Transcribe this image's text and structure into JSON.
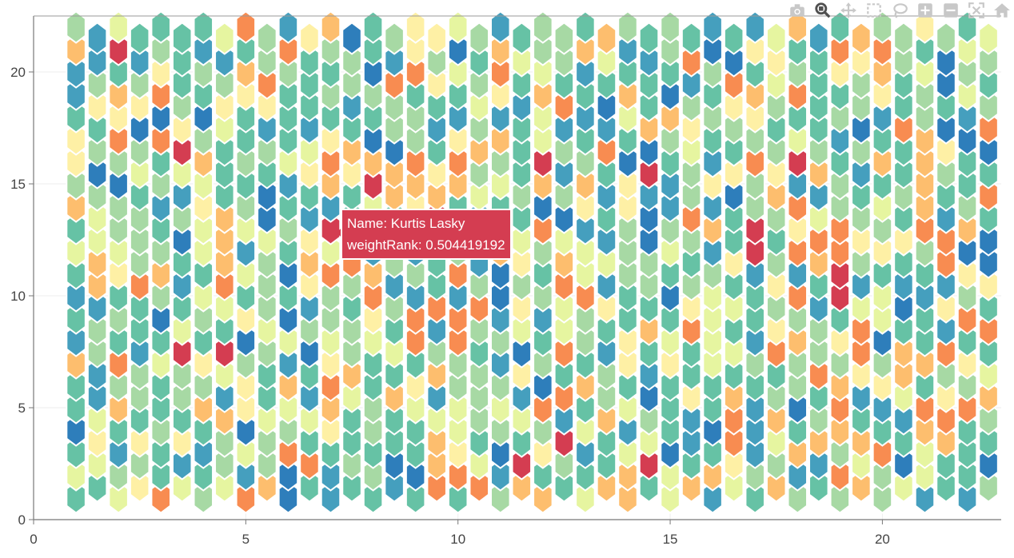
{
  "toolbar": {
    "icons": [
      "camera-icon",
      "zoom-icon",
      "pan-icon",
      "box-select-icon",
      "lasso-select-icon",
      "zoom-in-icon",
      "zoom-out-icon",
      "autoscale-icon",
      "reset-axes-icon"
    ]
  },
  "tooltip": {
    "name_line": "Name: Kurtis Lasky",
    "value_line": "weightRank: 0.504419192",
    "color": "#d43d51"
  },
  "chart_data": {
    "type": "heatmap",
    "subtype": "hexbin",
    "title": "",
    "xlabel": "",
    "ylabel": "",
    "xlim": [
      0,
      22.8
    ],
    "ylim": [
      0,
      22.5
    ],
    "x_ticks": [
      "0",
      "5",
      "10",
      "15",
      "20"
    ],
    "y_ticks": [
      "0",
      "5",
      "10",
      "15",
      "20"
    ],
    "x_tick_values": [
      0,
      5,
      10,
      15,
      20
    ],
    "y_tick_values": [
      0,
      5,
      10,
      15,
      20
    ],
    "grid": true,
    "colorscale": [
      "#d43d51",
      "#f88c51",
      "#fdbe6e",
      "#fef0a5",
      "#e6f5a0",
      "#a7d9a4",
      "#66c2a5",
      "#459fbe",
      "#2e7ebb"
    ],
    "hex_x_values": [
      1,
      1.5,
      2,
      2.5,
      3,
      3.5,
      4,
      4.5,
      5,
      5.5,
      6,
      6.5,
      7,
      7.5,
      8,
      8.5,
      9,
      9.5,
      10,
      10.5,
      11,
      11.5,
      12,
      12.5,
      13,
      13.5,
      14,
      14.5,
      15,
      15.5,
      16,
      16.5,
      17,
      17.5,
      18,
      18.5,
      19,
      19.5,
      20,
      20.5,
      21,
      21.5,
      22,
      22.5
    ],
    "hex_y_values": [
      1,
      2,
      3,
      4,
      5,
      6,
      7,
      8,
      9,
      10,
      11,
      12,
      13,
      14,
      15,
      16,
      17,
      18,
      19,
      20,
      21,
      22
    ],
    "highlighted_point": {
      "x": 7,
      "y": 13,
      "weightRank": 0.504419192
    }
  }
}
